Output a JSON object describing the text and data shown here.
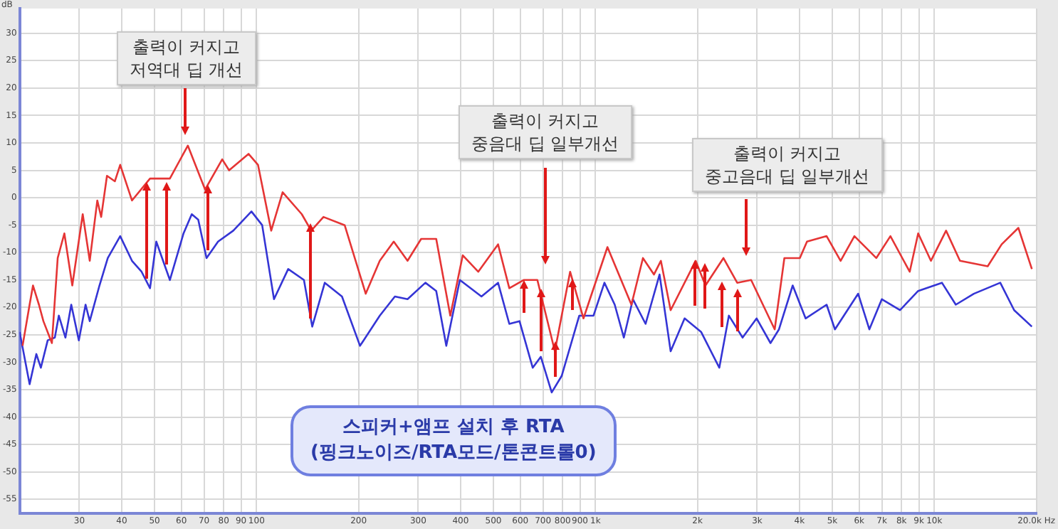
{
  "chart_data": {
    "type": "line",
    "ylabel": "dB",
    "log": "x",
    "grid": true,
    "marker": "none",
    "line_style": "solid",
    "xlim": [
      20,
      20000
    ],
    "ylim": [
      -57.5,
      34.5
    ],
    "xticks": [
      30,
      40,
      50,
      60,
      70,
      80,
      90,
      100,
      200,
      300,
      400,
      500,
      600,
      700,
      800,
      900,
      {
        "value": 1000,
        "label": "1k"
      },
      {
        "value": 2000,
        "label": "2k"
      },
      {
        "value": 3000,
        "label": "3k"
      },
      {
        "value": 4000,
        "label": "4k"
      },
      {
        "value": 5000,
        "label": "5k"
      },
      {
        "value": 6000,
        "label": "6k"
      },
      {
        "value": 7000,
        "label": "7k"
      },
      {
        "value": 8000,
        "label": "8k"
      },
      {
        "value": 9000,
        "label": "9k"
      },
      {
        "value": 10000,
        "label": "10k"
      },
      {
        "value": 20000,
        "label": "20.0k Hz"
      }
    ],
    "yticks": [
      30,
      25,
      20,
      15,
      10,
      5,
      0,
      -5,
      -10,
      -15,
      -20,
      -25,
      -30,
      -35,
      -40,
      -45,
      -50,
      -55
    ],
    "series": [
      {
        "color": "#e53535",
        "x": [
          20.4,
          21.4,
          21.9,
          22.8,
          23.5,
          24.9,
          25.9,
          27.1,
          28.6,
          30.7,
          32.2,
          33.9,
          34.8,
          36.2,
          38.2,
          39.6,
          42.9,
          48.5,
          55.5,
          62.7,
          70.5,
          79.2,
          83,
          94.7,
          101,
          110.5,
          119.4,
          136,
          145,
          157.6,
          182,
          210,
          231,
          254,
          279,
          306,
          339,
          373,
          406,
          451,
          516,
          557,
          614,
          674,
          759,
          842,
          922,
          1085,
          1277,
          1381,
          1488,
          1560,
          1667,
          1976,
          2112,
          2386,
          2620,
          2880,
          3380,
          3610,
          4010,
          4210,
          4810,
          5290,
          5810,
          6740,
          7420,
          8460,
          8960,
          9770,
          10830,
          11900,
          14370,
          15800,
          17700,
          19400
        ],
        "values": [
          -27,
          -19.5,
          -16,
          -19.5,
          -22.5,
          -26.5,
          -11,
          -6.5,
          -16,
          -3,
          -11.5,
          -0.5,
          -3.5,
          4,
          3,
          6,
          -0.5,
          3.5,
          3.5,
          9.5,
          1.5,
          7,
          5,
          8,
          6,
          -6,
          1,
          -3,
          -6,
          -3.5,
          -5,
          -17.5,
          -11.5,
          -8,
          -11.5,
          -7.5,
          -7.5,
          -21.5,
          -10.5,
          -13.5,
          -8.5,
          -16.5,
          -15,
          -15,
          -28,
          -13.5,
          -22,
          -9,
          -19.5,
          -11,
          -14,
          -11.5,
          -20.5,
          -11.5,
          -16,
          -11,
          -15.5,
          -15,
          -24,
          -11,
          -11,
          -8,
          -7,
          -11.5,
          -7,
          -11,
          -7,
          -13.5,
          -6.5,
          -11.5,
          -6,
          -11.5,
          -12.5,
          -8.5,
          -5.5,
          -13
        ]
      },
      {
        "color": "#3535d5",
        "x": [
          20,
          21.4,
          22.4,
          23.1,
          24.2,
          25.4,
          26.1,
          27.3,
          28.4,
          29.9,
          31.3,
          32.2,
          34.4,
          36.4,
          39.6,
          42.9,
          45.8,
          48.5,
          50.6,
          55.5,
          60.9,
          64.4,
          67.3,
          71.2,
          77,
          85.4,
          96.6,
          103.9,
          112.6,
          124,
          138,
          146,
          159,
          178.7,
          202,
          231,
          256,
          279,
          315,
          339,
          363,
          398,
          461,
          516,
          557,
          597,
          653,
          690,
          743,
          795,
          896,
          987,
          1063,
          1140,
          1213,
          1290,
          1406,
          1546,
          1667,
          1833,
          2052,
          2320,
          2476,
          2718,
          2990,
          3285,
          3480,
          3820,
          4170,
          4810,
          5090,
          5960,
          6430,
          7000,
          7920,
          8960,
          10530,
          11570,
          13080,
          15650,
          17200,
          19400
        ],
        "values": [
          -24.5,
          -34,
          -28.5,
          -31,
          -26,
          -25.5,
          -21.5,
          -25.5,
          -19.5,
          -26,
          -19.5,
          -22.5,
          -16,
          -11,
          -7,
          -11.5,
          -13.5,
          -16.5,
          -8,
          -15,
          -6.5,
          -3,
          -4,
          -11,
          -8,
          -6,
          -2.5,
          -5,
          -18.5,
          -13,
          -15,
          -23.5,
          -15.5,
          -18,
          -27,
          -21.5,
          -18,
          -18.5,
          -15.5,
          -17,
          -27,
          -15,
          -18,
          -15.5,
          -23,
          -22.5,
          -31,
          -29,
          -35.5,
          -32.5,
          -21.5,
          -21.5,
          -15.5,
          -19.5,
          -25.5,
          -18.5,
          -23,
          -14,
          -28,
          -22,
          -24.5,
          -31,
          -21.5,
          -25.5,
          -22,
          -26.5,
          -24,
          -16,
          -22,
          -19.5,
          -24,
          -17.5,
          -24,
          -18.5,
          -20.5,
          -17,
          -15.5,
          -19.5,
          -17.5,
          -15.5,
          -20.5,
          -23.5
        ]
      }
    ],
    "annotations": [
      "출력이 커지고\n저역대 딥 개선",
      "출력이 커지고\n중음대 딥 일부개선",
      "출력이 커지고\n중고음대 딥 일부개선",
      "스피커+앰프 설치 후 RTA\n(핑크노이즈/RTA모드/톤콘트롤0)"
    ]
  }
}
